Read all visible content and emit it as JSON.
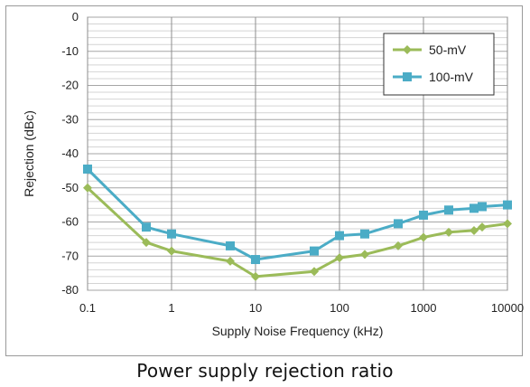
{
  "chart_data": {
    "type": "line",
    "title": "",
    "xlabel": "Supply Noise Frequency (kHz)",
    "ylabel": "Rejection (dBc)",
    "xscale": "log",
    "xlim": [
      0.1,
      10000
    ],
    "ylim": [
      -80,
      0
    ],
    "x_ticks": [
      "0.1",
      "1",
      "10",
      "100",
      "1000",
      "10000"
    ],
    "y_ticks": [
      "0",
      "-10",
      "-20",
      "-30",
      "-40",
      "-50",
      "-60",
      "-70",
      "-80"
    ],
    "grid": true,
    "legend_position": "top-right",
    "series": [
      {
        "name": "50-mV",
        "color": "#9bbb59",
        "x": [
          0.1,
          0.5,
          1,
          5,
          10,
          50,
          100,
          200,
          500,
          1000,
          2000,
          4000,
          5000,
          10000
        ],
        "y": [
          -50,
          -66,
          -68.5,
          -71.5,
          -76,
          -74.5,
          -70.5,
          -69.5,
          -67,
          -64.5,
          -63,
          -62.5,
          -61.5,
          -60.5
        ]
      },
      {
        "name": "100-mV",
        "color": "#4bacc6",
        "x": [
          0.1,
          0.5,
          1,
          5,
          10,
          50,
          100,
          200,
          500,
          1000,
          2000,
          4000,
          5000,
          10000
        ],
        "y": [
          -44.5,
          -61.5,
          -63.5,
          -67,
          -71,
          -68.5,
          -64,
          -63.5,
          -60.5,
          -58,
          -56.5,
          -56,
          -55.5,
          -55
        ]
      }
    ]
  },
  "caption": "Power supply rejection ratio"
}
